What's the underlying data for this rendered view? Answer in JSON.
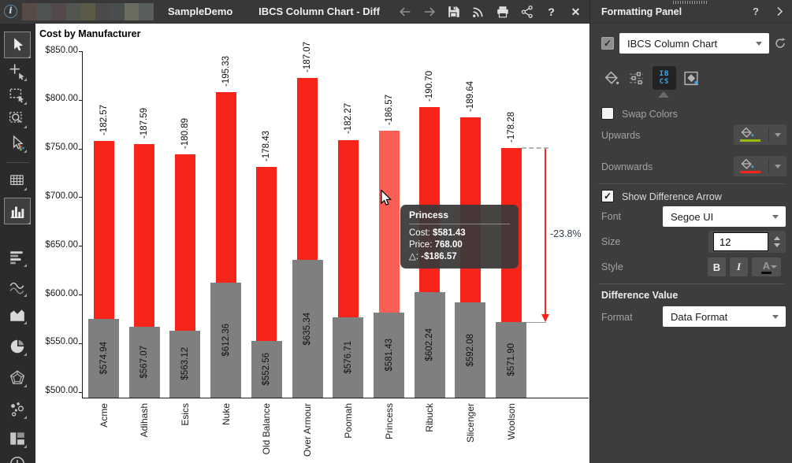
{
  "topbar": {
    "breadcrumb": "SampleDemo",
    "title": "IBCS Column Chart - Diff",
    "actions": [
      "back",
      "forward",
      "save",
      "feed",
      "print",
      "share",
      "help",
      "close"
    ],
    "help_glyph": "?",
    "close_glyph": "✕",
    "info_glyph": "i",
    "redacted_colors": [
      "#574a47",
      "#4e5550",
      "#55484b",
      "#515650",
      "#5a5a47",
      "#4a4a4c",
      "#484e4d",
      "#6b6b5f",
      "#585f5c"
    ]
  },
  "left_toolbar": {
    "items": [
      {
        "name": "select-tool",
        "selected": true
      },
      {
        "name": "point-select-tool"
      },
      {
        "name": "rectangle-select-tool"
      },
      {
        "name": "zoom-select-tool"
      },
      {
        "name": "smart-select-tool"
      },
      {
        "name": "divider"
      },
      {
        "name": "data-grid-tool"
      },
      {
        "name": "column-chart-tool",
        "selected": true
      },
      {
        "name": "bar-chart-tool"
      },
      {
        "name": "line-chart-tool"
      },
      {
        "name": "area-chart-tool"
      },
      {
        "name": "pie-chart-tool"
      },
      {
        "name": "radar-chart-tool"
      },
      {
        "name": "scatter-chart-tool"
      },
      {
        "name": "treemap-chart-tool"
      },
      {
        "name": "clock-tool"
      }
    ]
  },
  "chart_data": {
    "type": "bar",
    "title": "Cost by Manufacturer",
    "categories": [
      "Acme",
      "Adihash",
      "Esics",
      "Nuke",
      "Old Balance",
      "Over Armour",
      "Poomah",
      "Princess",
      "Ribuck",
      "Slicenger",
      "Woolson"
    ],
    "series": [
      {
        "name": "Cost",
        "color": "#7f7f7f",
        "values": [
          574.94,
          567.07,
          563.12,
          612.36,
          552.56,
          635.34,
          576.71,
          581.43,
          602.24,
          592.08,
          571.9
        ],
        "labels": [
          "$574.94",
          "$567.07",
          "$563.12",
          "$612.36",
          "$552.56",
          "$635.34",
          "$576.71",
          "$581.43",
          "$602.24",
          "$592.08",
          "$571.90"
        ]
      },
      {
        "name": "Price",
        "color": "#f62419",
        "highlight_color": "#fa5f55",
        "values": [
          757.51,
          754.66,
          744.01,
          807.69,
          730.99,
          822.41,
          758.98,
          768.0,
          792.94,
          781.72,
          750.18
        ],
        "labels": [
          "-182.57",
          "-187.59",
          "-180.89",
          "-195.33",
          "-178.43",
          "-187.07",
          "-182.27",
          "-186.57",
          "-190.70",
          "-189.64",
          "-178.28"
        ]
      }
    ],
    "highlighted_category": "Princess",
    "y_axis": {
      "min": 500,
      "max": 850,
      "tick_step": 50,
      "tick_labels": [
        "$850.00",
        "$800.00",
        "$750.00",
        "$700.00",
        "$650.00",
        "$600.00",
        "$550.00",
        "$500.00"
      ]
    },
    "grid": false,
    "legend": false,
    "difference_arrow": {
      "label": "-23.8%",
      "from_value": 750.18,
      "to_value": 571.9,
      "color": "#f62419",
      "label_color": "#36424c"
    }
  },
  "tooltip": {
    "title": "Princess",
    "rows": [
      {
        "label": "Cost:",
        "value": "$581.43"
      },
      {
        "label": "Price:",
        "value": "768.00"
      },
      {
        "label": "△:",
        "value": "-$186.57"
      }
    ]
  },
  "panel": {
    "header": {
      "title": "Formatting Panel",
      "help": "?"
    },
    "element": {
      "checked": true,
      "selector_value": "IBCS Column Chart"
    },
    "tabs": {
      "selected": "ibcs",
      "ibcs_top": "IB",
      "ibcs_bottom": "CS"
    },
    "swap_colors_label": "Swap Colors",
    "swap_colors_checked": false,
    "upwards_label": "Upwards",
    "upwards_color": "#93be0f",
    "downwards_label": "Downwards",
    "downwards_color": "#f62419",
    "show_difference_arrow_label": "Show Difference Arrow",
    "show_difference_arrow_checked": true,
    "font_label": "Font",
    "font_value": "Segoe UI",
    "size_label": "Size",
    "size_value": "12",
    "style_label": "Style",
    "bold_glyph": "B",
    "italic_glyph": "I",
    "font_color_glyph": "A",
    "difference_value_heading": "Difference Value",
    "format_label": "Format",
    "format_value": "Data Format"
  }
}
